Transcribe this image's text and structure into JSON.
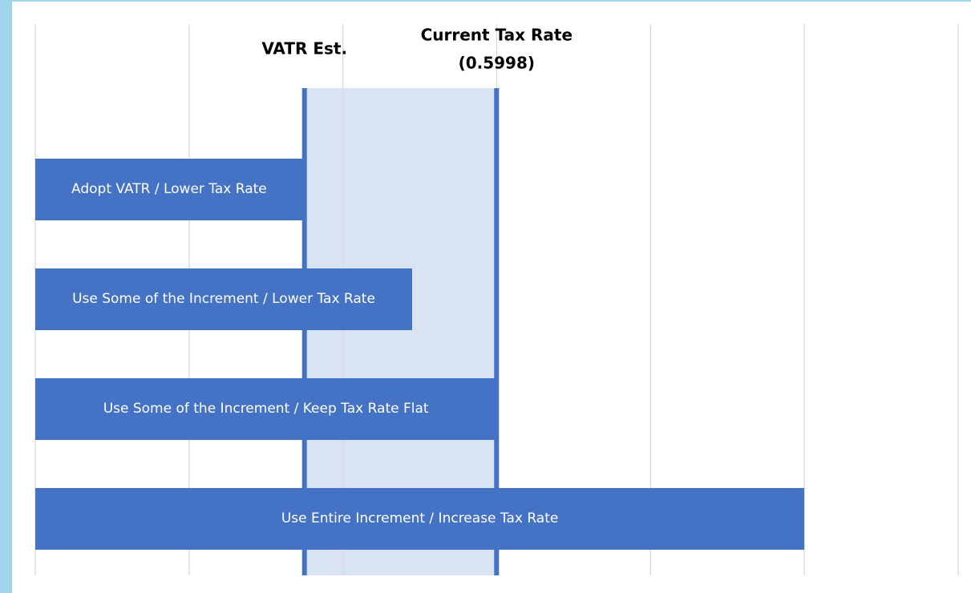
{
  "chart_data": {
    "type": "bar",
    "orientation": "horizontal",
    "categories": [
      "Adopt VATR / Lower Tax Rate",
      "Use Some of the Increment / Lower Tax Rate",
      "Use Some of the Increment / Keep Tax Rate Flat",
      "Use Entire Increment / Increase Tax Rate"
    ],
    "values": [
      0.348,
      0.49,
      0.5998,
      1.0
    ],
    "color": "#4472c4",
    "xlim": [
      0,
      1.2
    ],
    "xticks": [
      0,
      0.2,
      0.4,
      0.6,
      0.8,
      1.0,
      1.2
    ],
    "grid": true,
    "reference_lines": [
      {
        "label_lines": [
          "VATR Est."
        ],
        "value": 0.35
      },
      {
        "label_lines": [
          "Current Tax Rate",
          "(0.5998)"
        ],
        "value": 0.5998
      }
    ],
    "band_color": "#dae3f3"
  }
}
